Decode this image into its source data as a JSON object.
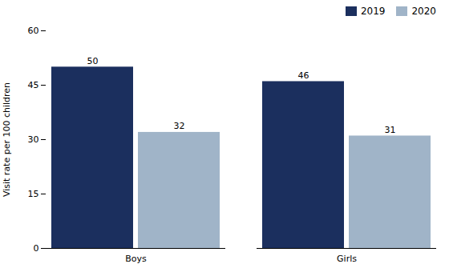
{
  "chart_data": {
    "type": "bar",
    "categories": [
      "Boys",
      "Girls"
    ],
    "series": [
      {
        "name": "2019",
        "color": "#1b2f5e",
        "values": [
          50,
          46
        ]
      },
      {
        "name": "2020",
        "color": "#a0b4c8",
        "values": [
          32,
          31
        ]
      }
    ],
    "ylabel": "Visit rate per 100 children",
    "ylim": [
      0,
      60
    ],
    "yticks": [
      0,
      15,
      30,
      45,
      60
    ],
    "data_labels": true,
    "legend": "upper right",
    "grid": false
  }
}
